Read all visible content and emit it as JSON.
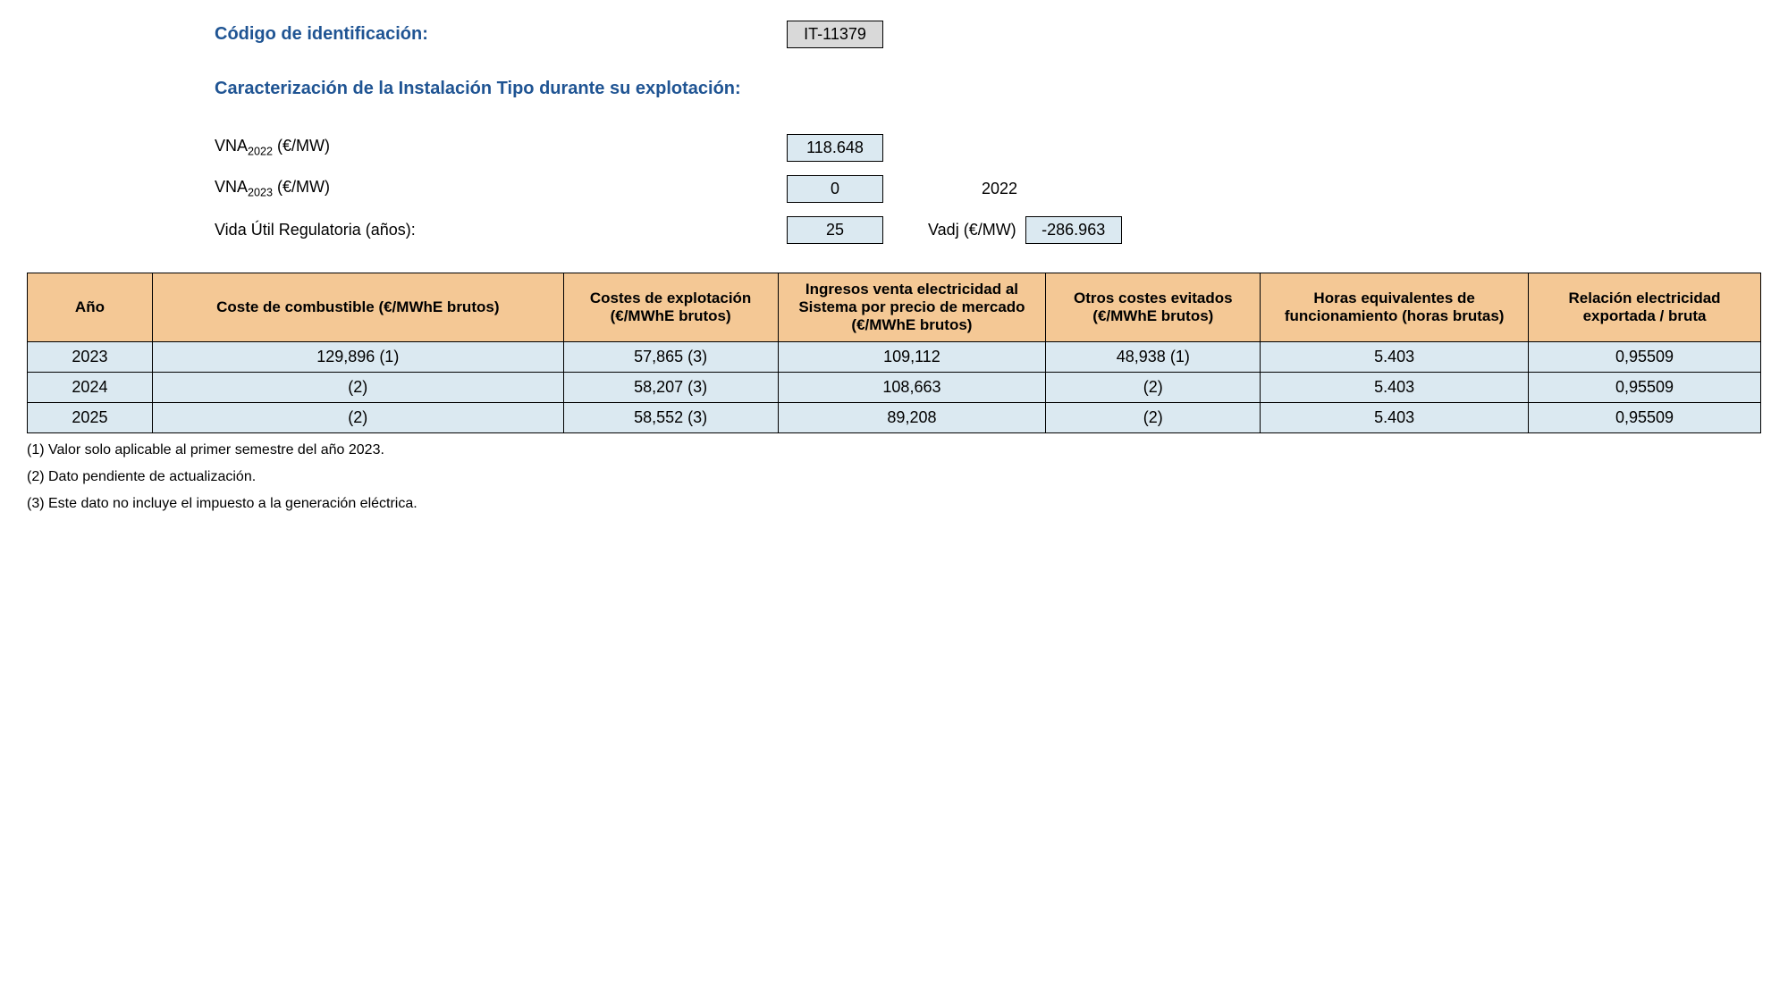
{
  "header": {
    "id_label": "Código de identificación:",
    "id_value": "IT-11379",
    "caract_label": "Caracterización de la Instalación Tipo durante su explotación:",
    "vna2022_label_pre": "VNA",
    "vna2022_sub": "2022",
    "vna2022_label_post": " (€/MW)",
    "vna2022_value": "118.648",
    "vna2023_label_pre": "VNA",
    "vna2023_sub": "2023",
    "vna2023_label_post": " (€/MW)",
    "vna2023_value": "0",
    "year_right": "2022",
    "vida_label": "Vida Útil Regulatoria (años):",
    "vida_value": "25",
    "vadj_label": "Vadj (€/MW)",
    "vadj_value": "-286.963"
  },
  "table": {
    "headers": {
      "year": "Año",
      "fuel": "Coste de combustible (€/MWhE brutos)",
      "exp": "Costes de explotación (€/MWhE brutos)",
      "ing": "Ingresos venta electricidad al Sistema por precio de mercado (€/MWhE brutos)",
      "otros": "Otros costes evitados (€/MWhE brutos)",
      "horas": "Horas equivalentes de funcionamiento (horas brutas)",
      "rel": "Relación electricidad exportada / bruta"
    },
    "rows": [
      {
        "year": "2023",
        "fuel": "129,896 (1)",
        "exp": "57,865 (3)",
        "ing": "109,112",
        "otros": "48,938 (1)",
        "horas": "5.403",
        "rel": "0,95509"
      },
      {
        "year": "2024",
        "fuel": "(2)",
        "exp": "58,207 (3)",
        "ing": "108,663",
        "otros": "(2)",
        "horas": "5.403",
        "rel": "0,95509"
      },
      {
        "year": "2025",
        "fuel": "(2)",
        "exp": "58,552 (3)",
        "ing": "89,208",
        "otros": "(2)",
        "horas": "5.403",
        "rel": "0,95509"
      }
    ]
  },
  "footnotes": {
    "n1": "(1) Valor solo aplicable al primer semestre del año 2023.",
    "n2": "(2) Dato pendiente de actualización.",
    "n3": "(3) Este dato no incluye el impuesto a la generación eléctrica."
  },
  "colors": {
    "heading": "#1f5493",
    "header_bg": "#f4c895",
    "cell_bg": "#dbe9f1",
    "box_grey": "#d9d9d9"
  }
}
